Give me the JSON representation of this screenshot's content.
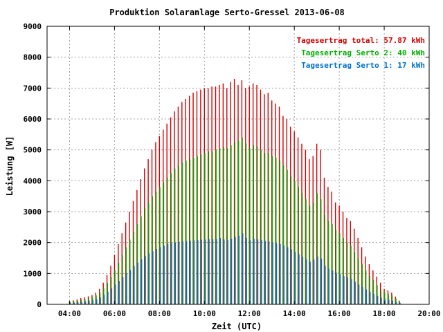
{
  "chart_data": {
    "type": "bar",
    "title": "Produktion Solaranlage Serto-Gressel 2013-06-08",
    "xlabel": "Zeit (UTC)",
    "ylabel": "Leistung [W]",
    "ylim": [
      0,
      9000
    ],
    "y_ticks": [
      0,
      1000,
      2000,
      3000,
      4000,
      5000,
      6000,
      7000,
      8000,
      9000
    ],
    "x_ticks": [
      "04:00",
      "06:00",
      "08:00",
      "10:00",
      "12:00",
      "14:00",
      "16:00",
      "18:00",
      "20:00"
    ],
    "x_range": [
      "03:00",
      "20:00"
    ],
    "grid": true,
    "legend_position": "top-right",
    "legend": [
      {
        "text": "Tagesertrag total: 57.87 kWh",
        "color": "#d20000"
      },
      {
        "text": "Tagesertrag Serto 2: 40 kWh",
        "color": "#00b000"
      },
      {
        "text": "Tagesertrag Serto 1: 17 kWh",
        "color": "#0070d0"
      }
    ],
    "series": [
      {
        "name": "Serto 1",
        "color": "#0070d0",
        "stack_order": 1
      },
      {
        "name": "Serto 2",
        "color": "#00b000",
        "stack_order": 2
      },
      {
        "name": "total",
        "color": "#d20000",
        "stack_order": 3
      }
    ],
    "x": [
      "04:00",
      "04:10",
      "04:20",
      "04:30",
      "04:40",
      "04:50",
      "05:00",
      "05:10",
      "05:20",
      "05:30",
      "05:40",
      "05:50",
      "06:00",
      "06:10",
      "06:20",
      "06:30",
      "06:40",
      "06:50",
      "07:00",
      "07:10",
      "07:20",
      "07:30",
      "07:40",
      "07:50",
      "08:00",
      "08:10",
      "08:20",
      "08:30",
      "08:40",
      "08:50",
      "09:00",
      "09:10",
      "09:20",
      "09:30",
      "09:40",
      "09:50",
      "10:00",
      "10:10",
      "10:20",
      "10:30",
      "10:40",
      "10:50",
      "11:00",
      "11:10",
      "11:20",
      "11:30",
      "11:40",
      "11:50",
      "12:00",
      "12:10",
      "12:20",
      "12:30",
      "12:40",
      "12:50",
      "13:00",
      "13:10",
      "13:20",
      "13:30",
      "13:40",
      "13:50",
      "14:00",
      "14:10",
      "14:20",
      "14:30",
      "14:40",
      "14:50",
      "15:00",
      "15:10",
      "15:20",
      "15:30",
      "15:40",
      "15:50",
      "16:00",
      "16:10",
      "16:20",
      "16:30",
      "16:40",
      "16:50",
      "17:00",
      "17:10",
      "17:20",
      "17:30",
      "17:40",
      "17:50",
      "18:00",
      "18:10",
      "18:20",
      "18:30",
      "18:40"
    ],
    "values_total": [
      100,
      130,
      160,
      200,
      230,
      260,
      300,
      380,
      500,
      700,
      950,
      1250,
      1600,
      1950,
      2300,
      2650,
      3000,
      3350,
      3700,
      4050,
      4400,
      4700,
      5000,
      5250,
      5450,
      5650,
      5850,
      6050,
      6250,
      6400,
      6550,
      6650,
      6750,
      6850,
      6900,
      6950,
      7000,
      7000,
      7050,
      7050,
      7100,
      7150,
      7000,
      7200,
      7300,
      7100,
      7250,
      7000,
      7050,
      7150,
      7100,
      6950,
      6800,
      6850,
      6600,
      6500,
      6400,
      6100,
      6000,
      5750,
      5600,
      5400,
      5200,
      5000,
      4700,
      4800,
      5200,
      5000,
      4100,
      3800,
      3650,
      3300,
      3200,
      3000,
      2800,
      2700,
      2450,
      2150,
      1850,
      1550,
      1300,
      1100,
      900,
      700,
      500,
      450,
      380,
      250,
      120
    ],
    "values_serto2": [
      80,
      105,
      125,
      150,
      175,
      200,
      230,
      290,
      380,
      520,
      690,
      880,
      1100,
      1350,
      1600,
      1850,
      2100,
      2350,
      2600,
      2850,
      3100,
      3300,
      3500,
      3650,
      3800,
      3950,
      4100,
      4250,
      4400,
      4500,
      4600,
      4650,
      4700,
      4750,
      4800,
      4850,
      4900,
      4950,
      4950,
      5000,
      5050,
      5100,
      5050,
      5150,
      5250,
      5300,
      5400,
      5200,
      5050,
      5150,
      5100,
      5000,
      4900,
      4900,
      4800,
      4750,
      4650,
      4500,
      4350,
      4150,
      4000,
      3800,
      3600,
      3400,
      3200,
      3300,
      3600,
      3400,
      2900,
      2700,
      2600,
      2400,
      2300,
      2150,
      2000,
      1900,
      1700,
      1500,
      1300,
      1100,
      920,
      780,
      620,
      480,
      380,
      330,
      280,
      190,
      90
    ],
    "values_serto1": [
      40,
      55,
      70,
      85,
      100,
      115,
      130,
      170,
      230,
      310,
      410,
      520,
      640,
      760,
      880,
      1000,
      1120,
      1240,
      1350,
      1460,
      1560,
      1650,
      1720,
      1790,
      1850,
      1900,
      1950,
      1980,
      2000,
      2020,
      2040,
      2050,
      2060,
      2070,
      2080,
      2090,
      2100,
      2110,
      2110,
      2120,
      2150,
      2100,
      2080,
      2120,
      2180,
      2220,
      2300,
      2150,
      2080,
      2120,
      2100,
      2080,
      2050,
      2030,
      2000,
      1980,
      1950,
      1900,
      1850,
      1780,
      1700,
      1620,
      1540,
      1460,
      1380,
      1450,
      1550,
      1480,
      1250,
      1150,
      1100,
      1020,
      980,
      920,
      860,
      820,
      730,
      640,
      560,
      480,
      400,
      340,
      270,
      210,
      170,
      150,
      120,
      80,
      40
    ]
  }
}
